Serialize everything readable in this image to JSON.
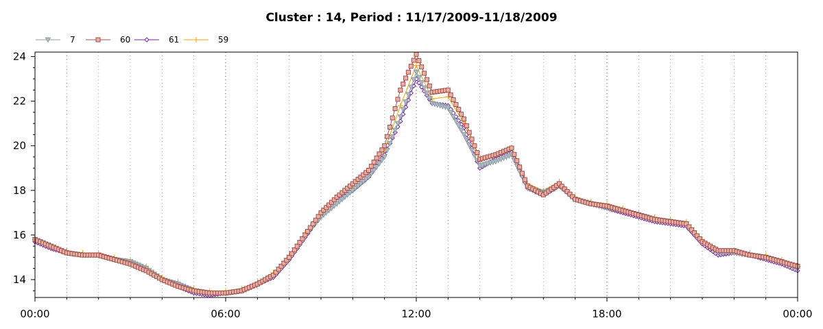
{
  "chart_data": {
    "type": "line",
    "title": "Cluster : 14, Period : 11/17/2009-11/18/2009",
    "xlabel": "",
    "ylabel": "",
    "x_domain_hours": [
      0,
      24
    ],
    "xticks": [
      {
        "hour": 0,
        "label": "00:00"
      },
      {
        "hour": 6,
        "label": "06:00"
      },
      {
        "hour": 12,
        "label": "12:00"
      },
      {
        "hour": 18,
        "label": "18:00"
      },
      {
        "hour": 24,
        "label": "00:00"
      }
    ],
    "ylim": [
      13.2,
      24.2
    ],
    "yticks": [
      14,
      16,
      18,
      20,
      22,
      24
    ],
    "grid": "dotted",
    "legend_position": "top-left",
    "series": [
      {
        "name": "7",
        "color": "#8c9ea8",
        "marker": "triangle-down",
        "x": [
          0,
          0.5,
          1,
          1.5,
          2,
          2.5,
          3,
          3.5,
          4,
          4.5,
          5,
          5.5,
          6,
          6.5,
          7,
          7.5,
          8,
          8.5,
          9,
          9.5,
          10,
          10.5,
          11,
          11.5,
          12,
          12.5,
          13,
          13.5,
          14,
          14.5,
          15,
          15.5,
          16,
          16.5,
          17,
          17.5,
          18,
          18.5,
          19,
          19.5,
          20,
          20.5,
          21,
          21.5,
          22,
          22.5,
          23,
          23.5,
          24
        ],
        "values": [
          15.8,
          15.5,
          15.2,
          15.1,
          15.1,
          14.9,
          14.8,
          14.5,
          14.0,
          13.8,
          13.5,
          13.4,
          13.4,
          13.5,
          13.8,
          14.2,
          15.0,
          16.0,
          16.8,
          17.4,
          18.0,
          18.6,
          19.5,
          21.3,
          23.3,
          21.9,
          21.7,
          20.5,
          19.1,
          19.3,
          19.6,
          18.1,
          17.9,
          18.2,
          17.6,
          17.4,
          17.2,
          17.1,
          16.9,
          16.7,
          16.6,
          16.5,
          15.7,
          15.2,
          15.2,
          15.1,
          15.0,
          14.8,
          14.5
        ]
      },
      {
        "name": "60",
        "color": "#a05050",
        "marker": "square",
        "x": [
          0,
          0.5,
          1,
          1.5,
          2,
          2.5,
          3,
          3.5,
          4,
          4.5,
          5,
          5.5,
          6,
          6.5,
          7,
          7.5,
          8,
          8.5,
          9,
          9.5,
          10,
          10.5,
          11,
          11.5,
          12,
          12.5,
          13,
          13.5,
          14,
          14.5,
          15,
          15.5,
          16,
          16.5,
          17,
          17.5,
          18,
          18.5,
          19,
          19.5,
          20,
          20.5,
          21,
          21.5,
          22,
          22.5,
          23,
          23.5,
          24
        ],
        "values": [
          15.8,
          15.5,
          15.2,
          15.1,
          15.1,
          14.9,
          14.7,
          14.4,
          14.0,
          13.7,
          13.5,
          13.4,
          13.4,
          13.5,
          13.8,
          14.2,
          15.0,
          16.0,
          17.0,
          17.7,
          18.3,
          18.9,
          20.0,
          22.5,
          24.1,
          22.4,
          22.5,
          21.2,
          19.4,
          19.6,
          19.9,
          18.2,
          17.8,
          18.3,
          17.6,
          17.4,
          17.3,
          17.1,
          16.9,
          16.7,
          16.6,
          16.5,
          15.7,
          15.3,
          15.3,
          15.1,
          15.0,
          14.8,
          14.6
        ]
      },
      {
        "name": "61",
        "color": "#7b1fa2",
        "marker": "diamond",
        "x": [
          0,
          0.5,
          1,
          1.5,
          2,
          2.5,
          3,
          3.5,
          4,
          4.5,
          5,
          5.5,
          6,
          6.5,
          7,
          7.5,
          8,
          8.5,
          9,
          9.5,
          10,
          10.5,
          11,
          11.5,
          12,
          12.5,
          13,
          13.5,
          14,
          14.5,
          15,
          15.5,
          16,
          16.5,
          17,
          17.5,
          18,
          18.5,
          19,
          19.5,
          20,
          20.5,
          21,
          21.5,
          22,
          22.5,
          23,
          23.5,
          24
        ],
        "values": [
          15.7,
          15.4,
          15.2,
          15.1,
          15.1,
          14.9,
          14.7,
          14.4,
          14.0,
          13.7,
          13.4,
          13.3,
          13.4,
          13.5,
          13.8,
          14.1,
          14.9,
          15.9,
          16.9,
          17.5,
          18.0,
          18.6,
          19.6,
          21.1,
          23.0,
          21.9,
          21.8,
          20.8,
          19.0,
          19.4,
          19.7,
          18.1,
          17.8,
          18.2,
          17.6,
          17.4,
          17.2,
          17.0,
          16.8,
          16.6,
          16.5,
          16.4,
          15.6,
          15.1,
          15.2,
          15.1,
          14.9,
          14.7,
          14.4
        ]
      },
      {
        "name": "59",
        "color": "#ffa000",
        "marker": "plus",
        "x": [
          0,
          0.5,
          1,
          1.5,
          2,
          2.5,
          3,
          3.5,
          4,
          4.5,
          5,
          5.5,
          6,
          6.5,
          7,
          7.5,
          8,
          8.5,
          9,
          9.5,
          10,
          10.5,
          11,
          11.5,
          12,
          12.5,
          13,
          13.5,
          14,
          14.5,
          15,
          15.5,
          16,
          16.5,
          17,
          17.5,
          18,
          18.5,
          19,
          19.5,
          20,
          20.5,
          21,
          21.5,
          22,
          22.5,
          23,
          23.5,
          24
        ],
        "values": [
          15.8,
          15.5,
          15.3,
          15.2,
          15.2,
          15.0,
          14.9,
          14.6,
          14.1,
          13.9,
          13.6,
          13.5,
          13.5,
          13.6,
          13.9,
          14.3,
          15.1,
          16.1,
          17.0,
          17.6,
          18.2,
          18.8,
          19.8,
          21.8,
          23.6,
          22.1,
          22.2,
          21.0,
          19.3,
          19.6,
          19.9,
          18.3,
          18.0,
          18.4,
          17.7,
          17.5,
          17.4,
          17.2,
          17.0,
          16.8,
          16.7,
          16.6,
          15.8,
          15.3,
          15.3,
          15.2,
          15.1,
          14.9,
          14.6
        ]
      }
    ]
  }
}
